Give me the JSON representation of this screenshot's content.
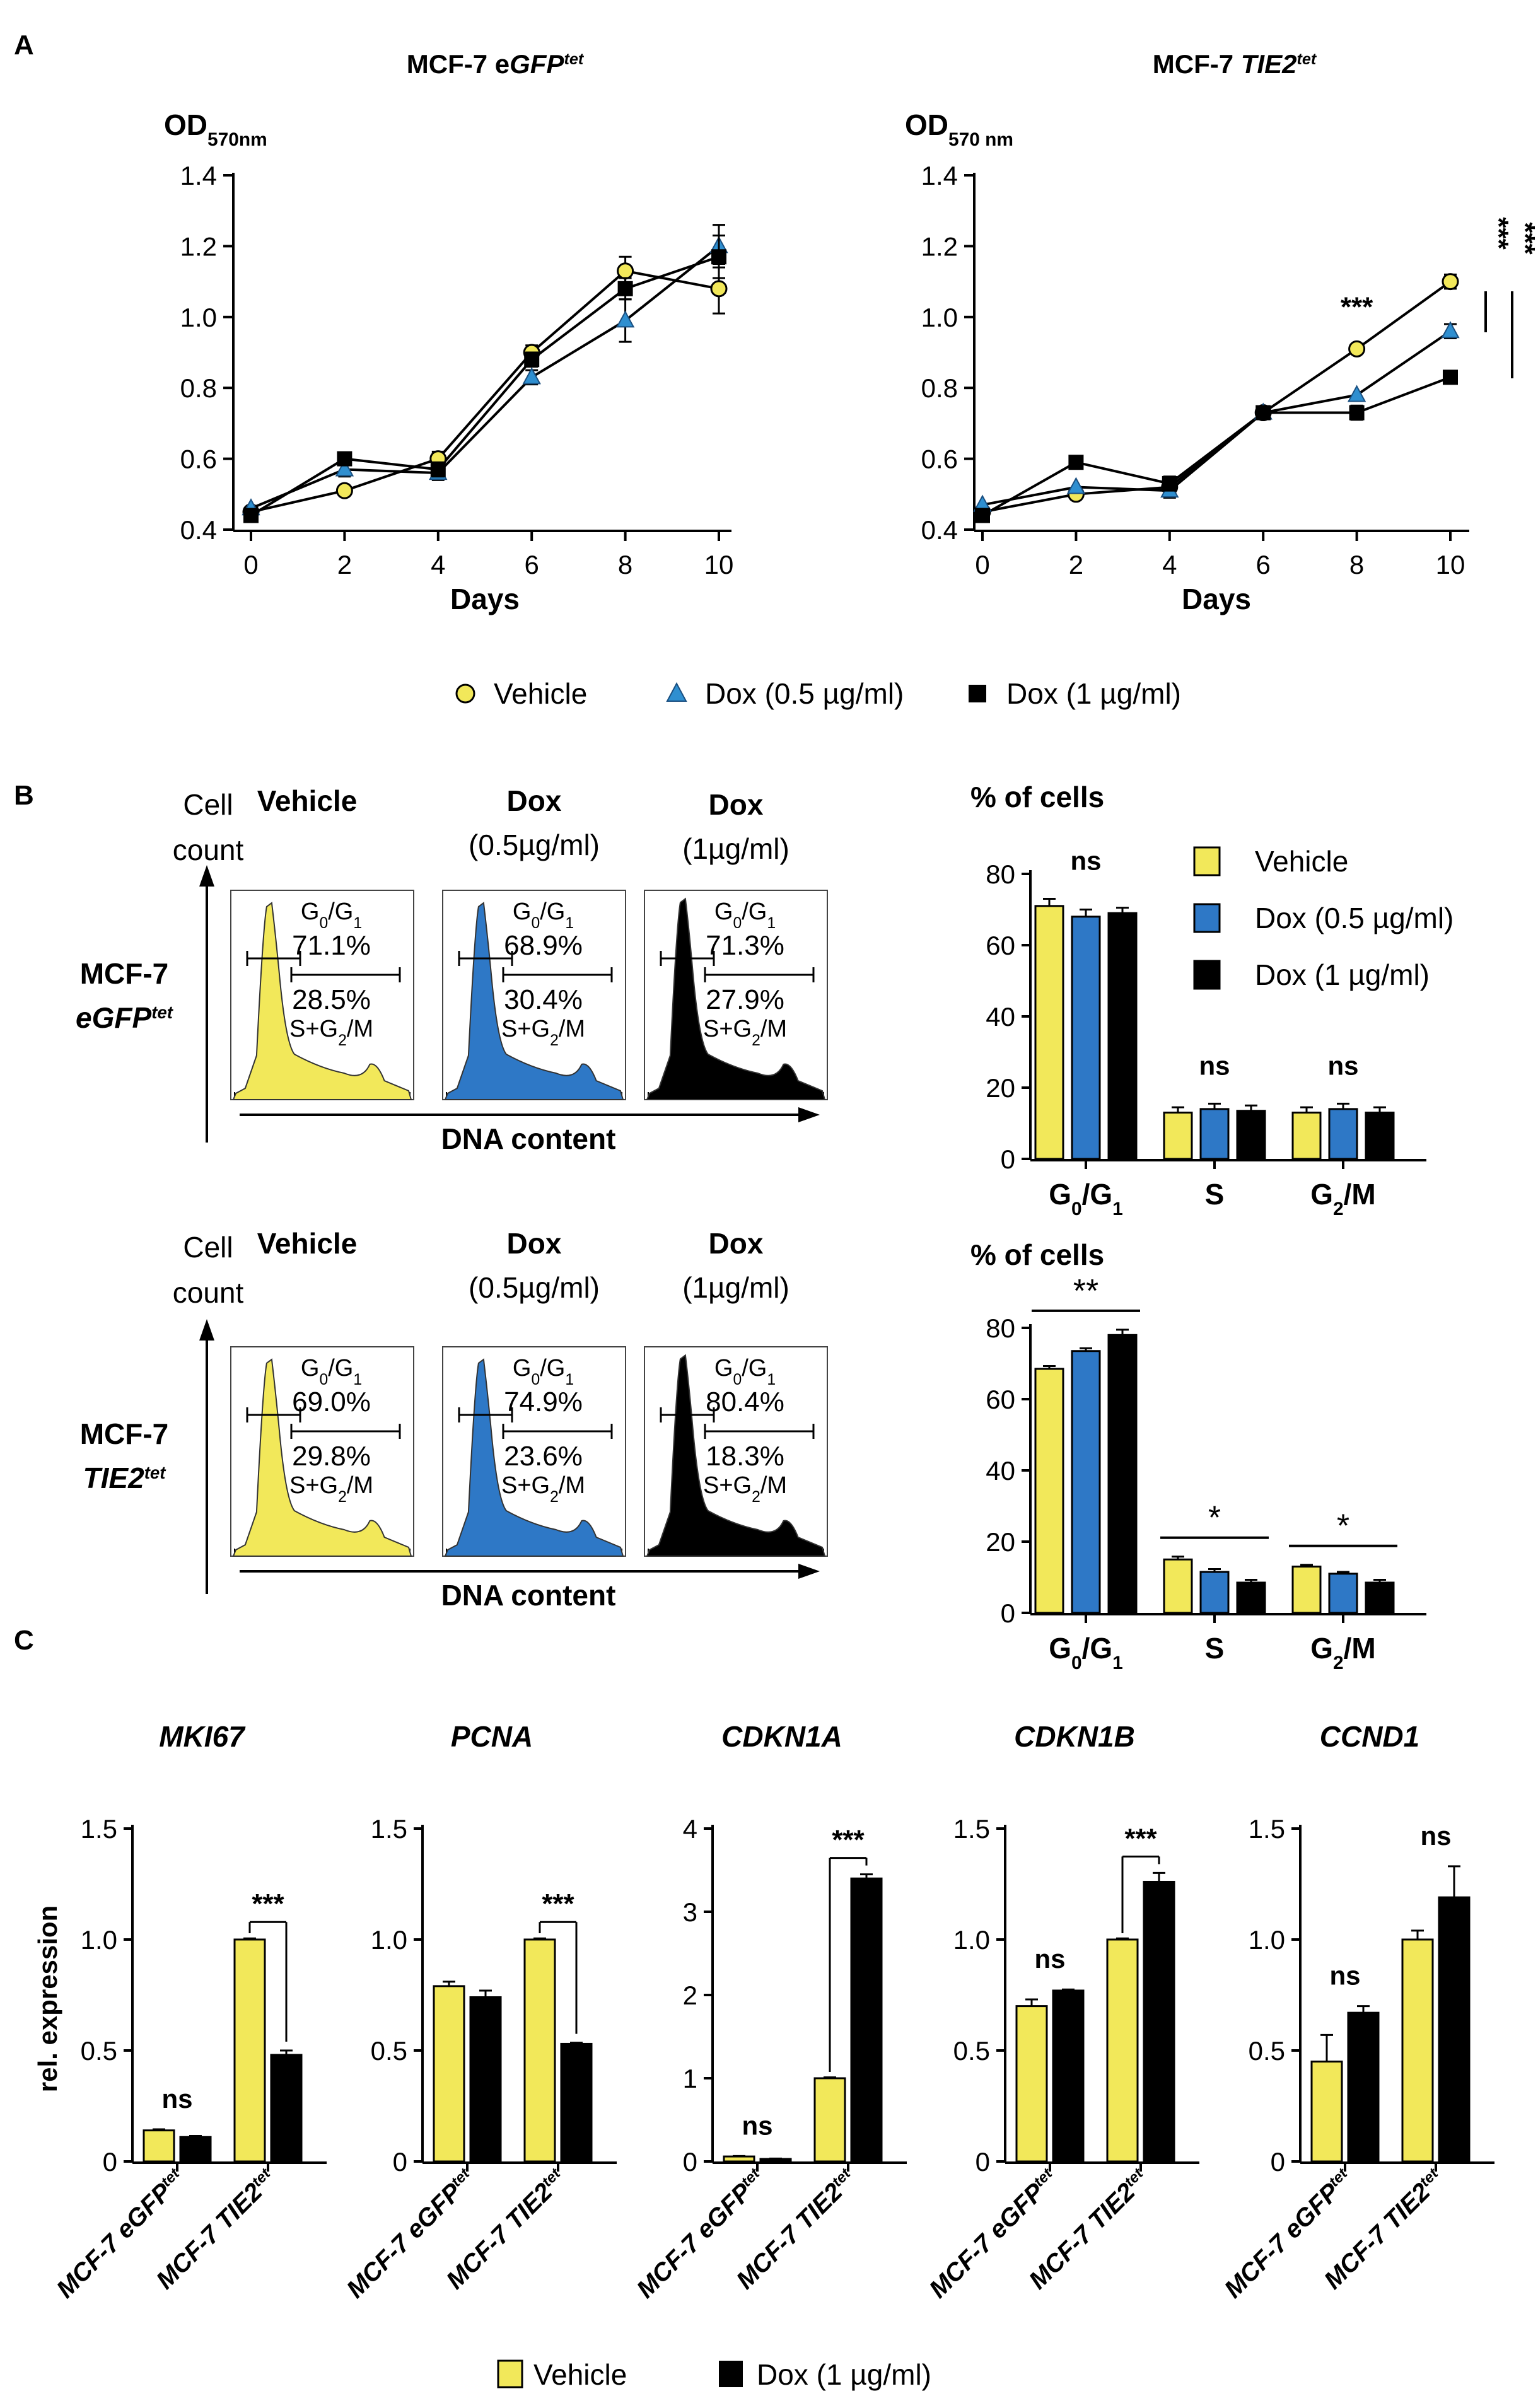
{
  "panels": {
    "A": "A",
    "B": "B",
    "C": "C"
  },
  "colors": {
    "vehicle": "#f2e85a",
    "dox05": "#2e78c6",
    "dox1": "#000000",
    "tri": "#2f8fd0"
  },
  "icons": {
    "vehicle_marker": "circle-marker",
    "dox05_marker": "triangle-marker",
    "dox1_marker": "square-marker"
  },
  "panel_a": {
    "legend": {
      "vehicle": "Vehicle",
      "dox05": "Dox (0.5 µg/ml)",
      "dox1": "Dox (1 µg/ml)"
    }
  },
  "panel_b": {
    "cell": "Cell",
    "count": "count",
    "dna_content": "DNA content",
    "row1": {
      "cell_line": "MCF-7",
      "gene": "eGFP",
      "sup": "tet"
    },
    "row2": {
      "cell_line": "MCF-7",
      "gene": "TIE2",
      "sup": "tet"
    },
    "treatments": [
      {
        "name": "Vehicle",
        "dose": ""
      },
      {
        "name": "Dox",
        "dose": "(0.5µg/ml)"
      },
      {
        "name": "Dox",
        "dose": "(1µg/ml)"
      }
    ],
    "gate_g0g1": "G0/G1",
    "gate_sg2m": "S+G2/M",
    "histograms": [
      {
        "row": 1,
        "g0g1": "71.1%",
        "sg2m": "28.5%"
      },
      {
        "row": 1,
        "g0g1": "68.9%",
        "sg2m": "30.4%"
      },
      {
        "row": 1,
        "g0g1": "71.3%",
        "sg2m": "27.9%"
      },
      {
        "row": 2,
        "g0g1": "69.0%",
        "sg2m": "29.8%"
      },
      {
        "row": 2,
        "g0g1": "74.9%",
        "sg2m": "23.6%"
      },
      {
        "row": 2,
        "g0g1": "80.4%",
        "sg2m": "18.3%"
      }
    ],
    "bar_legend": {
      "vehicle": "Vehicle",
      "dox05": "Dox (0.5 µg/ml)",
      "dox1": "Dox (1 µg/ml)"
    }
  },
  "panel_c": {
    "ylabel": "rel. expression",
    "legend": {
      "vehicle": "Vehicle",
      "dox1": "Dox (1 µg/ml)"
    },
    "xcats": [
      {
        "line": "MCF-7",
        "gene": "eGFP",
        "sup": "tet"
      },
      {
        "line": "MCF-7",
        "gene": "TIE2",
        "sup": "tet"
      }
    ]
  },
  "chart_data": [
    {
      "id": "A1",
      "type": "line",
      "title": "MCF-7 eGFPtet",
      "title_plain": "MCF-7 e",
      "title_gene": "GFP",
      "title_sup": "tet",
      "ylabel_main": "OD",
      "ylabel_sub": "570nm",
      "xlabel": "Days",
      "x": [
        0,
        2,
        4,
        6,
        8,
        10
      ],
      "xticks": [
        "0",
        "2",
        "4",
        "6",
        "8",
        "10"
      ],
      "ylim": [
        0.4,
        1.4
      ],
      "yticks": [
        "0.4",
        "0.6",
        "0.8",
        "1.0",
        "1.2",
        "1.4"
      ],
      "series": [
        {
          "name": "Vehicle",
          "marker": "circle",
          "values": [
            0.45,
            0.51,
            0.6,
            0.9,
            1.13,
            1.08
          ],
          "errors": [
            0.01,
            0.01,
            0.02,
            0.02,
            0.04,
            0.07
          ]
        },
        {
          "name": "Dox (0.5 µg/ml)",
          "marker": "triangle",
          "values": [
            0.46,
            0.57,
            0.56,
            0.83,
            0.99,
            1.2
          ],
          "errors": [
            0.01,
            0.02,
            0.02,
            0.02,
            0.06,
            0.06
          ]
        },
        {
          "name": "Dox (1 µg/ml)",
          "marker": "square",
          "values": [
            0.44,
            0.6,
            0.57,
            0.88,
            1.08,
            1.17
          ],
          "errors": [
            0.01,
            0.01,
            0.02,
            0.02,
            0.03,
            0.06
          ]
        }
      ],
      "annotations": []
    },
    {
      "id": "A2",
      "type": "line",
      "title": "MCF-7 TIE2tet",
      "title_plain": "MCF-7 ",
      "title_gene": "TIE2",
      "title_sup": "tet",
      "ylabel_main": "OD",
      "ylabel_sub": "570 nm",
      "xlabel": "Days",
      "x": [
        0,
        2,
        4,
        6,
        8,
        10
      ],
      "xticks": [
        "0",
        "2",
        "4",
        "6",
        "8",
        "10"
      ],
      "ylim": [
        0.4,
        1.4
      ],
      "yticks": [
        "0.4",
        "0.6",
        "0.8",
        "1.0",
        "1.2",
        "1.4"
      ],
      "series": [
        {
          "name": "Vehicle",
          "marker": "circle",
          "values": [
            0.45,
            0.5,
            0.52,
            0.73,
            0.91,
            1.1
          ],
          "errors": [
            0.01,
            0.01,
            0.02,
            0.01,
            0.01,
            0.02
          ]
        },
        {
          "name": "Dox (0.5 µg/ml)",
          "marker": "triangle",
          "values": [
            0.47,
            0.52,
            0.51,
            0.73,
            0.78,
            0.96
          ],
          "errors": [
            0.01,
            0.01,
            0.02,
            0.01,
            0.01,
            0.02
          ]
        },
        {
          "name": "Dox (1 µg/ml)",
          "marker": "square",
          "values": [
            0.44,
            0.59,
            0.53,
            0.73,
            0.73,
            0.83
          ],
          "errors": [
            0.01,
            0.01,
            0.02,
            0.01,
            0.02,
            0.01
          ]
        }
      ],
      "annotations": [
        "***",
        "***",
        "***"
      ]
    },
    {
      "id": "B1",
      "type": "bar",
      "title": "% of cells",
      "categories": [
        "G0/G1",
        "S",
        "G2/M"
      ],
      "ylim": [
        0,
        80
      ],
      "yticks": [
        "0",
        "20",
        "40",
        "60",
        "80"
      ],
      "series": [
        {
          "name": "Vehicle",
          "values": [
            71,
            13,
            13
          ],
          "errors": [
            2,
            1.5,
            1.5
          ]
        },
        {
          "name": "Dox (0.5 µg/ml)",
          "values": [
            68,
            14,
            14
          ],
          "errors": [
            2,
            1.5,
            1.5
          ]
        },
        {
          "name": "Dox (1 µg/ml)",
          "values": [
            69,
            13.5,
            13
          ],
          "errors": [
            1.5,
            1.5,
            1.5
          ]
        }
      ],
      "annotations": [
        "ns",
        "ns",
        "ns"
      ]
    },
    {
      "id": "B2",
      "type": "bar",
      "title": "% of cells",
      "categories": [
        "G0/G1",
        "S",
        "G2/M"
      ],
      "ylim": [
        0,
        80
      ],
      "yticks": [
        "0",
        "20",
        "40",
        "60",
        "80"
      ],
      "series": [
        {
          "name": "Vehicle",
          "values": [
            68.5,
            15,
            13
          ],
          "errors": [
            0.8,
            0.8,
            0.5
          ]
        },
        {
          "name": "Dox (0.5 µg/ml)",
          "values": [
            73.5,
            11.5,
            11
          ],
          "errors": [
            0.8,
            0.8,
            0.5
          ]
        },
        {
          "name": "Dox (1 µg/ml)",
          "values": [
            78,
            8.5,
            8.5
          ],
          "errors": [
            1.5,
            0.8,
            0.8
          ]
        }
      ],
      "annotations": [
        "**",
        "*",
        "*"
      ]
    },
    {
      "id": "C1",
      "type": "bar",
      "title": "MKI67",
      "ylim": [
        0,
        1.5
      ],
      "yticks": [
        "0",
        "0.5",
        "1.0",
        "1.5"
      ],
      "groups": [
        {
          "vehicle": 0.14,
          "vehicle_err": 0.005,
          "dox": 0.11,
          "dox_err": 0.005,
          "label": "ns"
        },
        {
          "vehicle": 1.0,
          "vehicle_err": 0.005,
          "dox": 0.48,
          "dox_err": 0.02,
          "label": "***"
        }
      ]
    },
    {
      "id": "C2",
      "type": "bar",
      "title": "PCNA",
      "ylim": [
        0,
        1.5
      ],
      "yticks": [
        "0",
        "0.5",
        "1.0",
        "1.5"
      ],
      "groups": [
        {
          "vehicle": 0.79,
          "vehicle_err": 0.02,
          "dox": 0.74,
          "dox_err": 0.03,
          "label": ""
        },
        {
          "vehicle": 1.0,
          "vehicle_err": 0.005,
          "dox": 0.53,
          "dox_err": 0.005,
          "label": "***"
        }
      ]
    },
    {
      "id": "C3",
      "type": "bar",
      "title": "CDKN1A",
      "ylim": [
        0,
        4
      ],
      "yticks": [
        "0",
        "1",
        "2",
        "3",
        "4"
      ],
      "groups": [
        {
          "vehicle": 0.06,
          "vehicle_err": 0.005,
          "dox": 0.03,
          "dox_err": 0.005,
          "label": "ns"
        },
        {
          "vehicle": 1.0,
          "vehicle_err": 0.01,
          "dox": 3.4,
          "dox_err": 0.05,
          "label": "***"
        }
      ]
    },
    {
      "id": "C4",
      "type": "bar",
      "title": "CDKN1B",
      "ylim": [
        0,
        1.5
      ],
      "yticks": [
        "0",
        "0.5",
        "1.0",
        "1.5"
      ],
      "groups": [
        {
          "vehicle": 0.7,
          "vehicle_err": 0.03,
          "dox": 0.77,
          "dox_err": 0.005,
          "label": "ns"
        },
        {
          "vehicle": 1.0,
          "vehicle_err": 0.005,
          "dox": 1.26,
          "dox_err": 0.04,
          "label": "***"
        }
      ]
    },
    {
      "id": "C5",
      "type": "bar",
      "title": "CCND1",
      "ylim": [
        0,
        1.5
      ],
      "yticks": [
        "0",
        "0.5",
        "1.0",
        "1.5"
      ],
      "groups": [
        {
          "vehicle": 0.45,
          "vehicle_err": 0.12,
          "dox": 0.67,
          "dox_err": 0.03,
          "label": "ns"
        },
        {
          "vehicle": 1.0,
          "vehicle_err": 0.04,
          "dox": 1.19,
          "dox_err": 0.14,
          "label": "ns"
        }
      ]
    }
  ]
}
